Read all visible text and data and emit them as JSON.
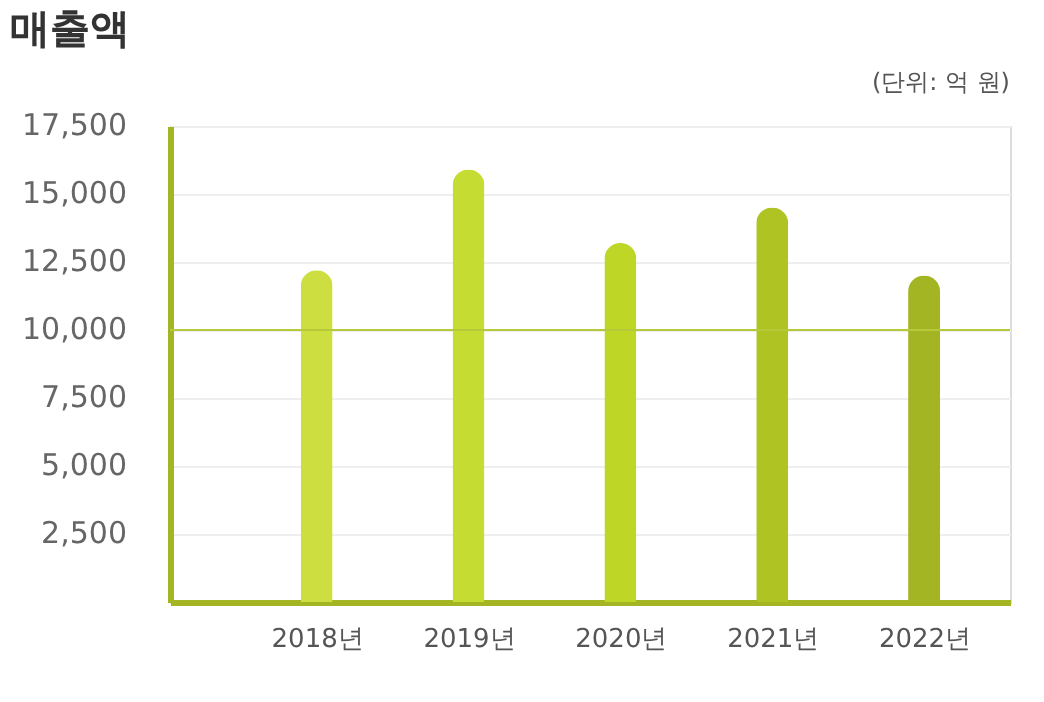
{
  "chart_data": {
    "type": "bar",
    "title": "매출액",
    "annotations": [
      "(단위: 억 원)"
    ],
    "categories": [
      "2018년",
      "2019년",
      "2020년",
      "2021년",
      "2022년"
    ],
    "values": [
      12200,
      15900,
      13200,
      14500,
      12000
    ],
    "colors": [
      "#cddf40",
      "#c5dc32",
      "#bed626",
      "#afc423",
      "#a3b522"
    ],
    "ylim": [
      0,
      17500
    ],
    "yticks": [
      {
        "value": 2500,
        "label": "2,500"
      },
      {
        "value": 5000,
        "label": "5,000"
      },
      {
        "value": 7500,
        "label": "7,500"
      },
      {
        "value": 10000,
        "label": "10,000"
      },
      {
        "value": 12500,
        "label": "12,500"
      },
      {
        "value": 15000,
        "label": "15,000"
      },
      {
        "value": 17500,
        "label": "17,500"
      }
    ],
    "ref_lines": [
      {
        "axis": "y",
        "value": 10000,
        "label": null,
        "color": "#b5c93a"
      }
    ],
    "grid": "y"
  }
}
